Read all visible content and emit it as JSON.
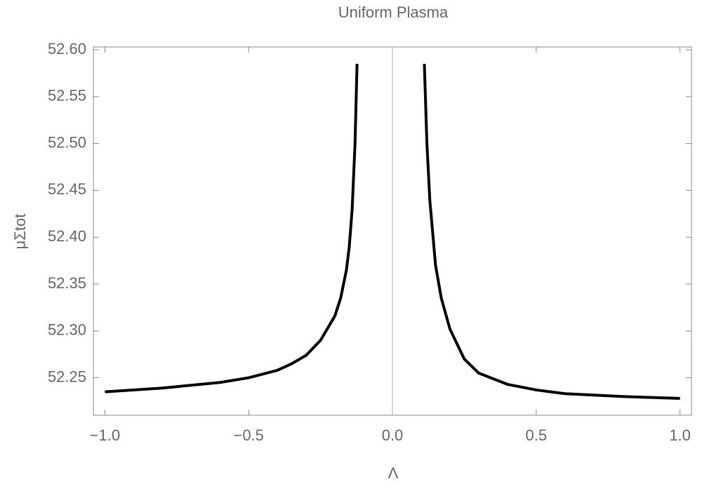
{
  "chart_data": {
    "type": "line",
    "title": "Uniform Plasma",
    "x_label": "Λ",
    "y_label": "μΣtot",
    "x": [
      -1.0,
      -0.8,
      -0.6,
      -0.5,
      -0.4,
      -0.35,
      -0.3,
      -0.25,
      -0.2,
      -0.18,
      -0.16,
      -0.15,
      -0.14,
      -0.13,
      -0.123,
      null,
      0.111,
      0.12,
      0.13,
      0.15,
      0.17,
      0.2,
      0.25,
      0.3,
      0.4,
      0.5,
      0.6,
      0.8,
      1.0
    ],
    "series": [
      {
        "color": "#000000",
        "values": [
          52.235,
          52.239,
          52.245,
          52.25,
          52.258,
          52.265,
          52.274,
          52.29,
          52.316,
          52.335,
          52.365,
          52.39,
          52.43,
          52.5,
          52.585,
          null,
          52.585,
          52.5,
          52.44,
          52.37,
          52.335,
          52.302,
          52.27,
          52.255,
          52.243,
          52.237,
          52.233,
          52.23,
          52.228
        ]
      }
    ],
    "xlim": [
      -1.04,
      1.04
    ],
    "ylim": [
      52.21,
      52.603
    ],
    "xticks": [
      {
        "value": -1.0,
        "label": "−1.0"
      },
      {
        "value": -0.5,
        "label": "−0.5"
      },
      {
        "value": 0,
        "label": "0.0"
      },
      0.5,
      {
        "value": 1.0,
        "label": "1.0"
      }
    ],
    "yticks": [
      52.25,
      {
        "value": 52.3,
        "label": "52.30"
      },
      52.35,
      {
        "value": 52.4,
        "label": "52.40"
      },
      52.45,
      {
        "value": 52.5,
        "label": "52.50"
      },
      52.55,
      {
        "value": 52.6,
        "label": "52.60"
      }
    ]
  }
}
